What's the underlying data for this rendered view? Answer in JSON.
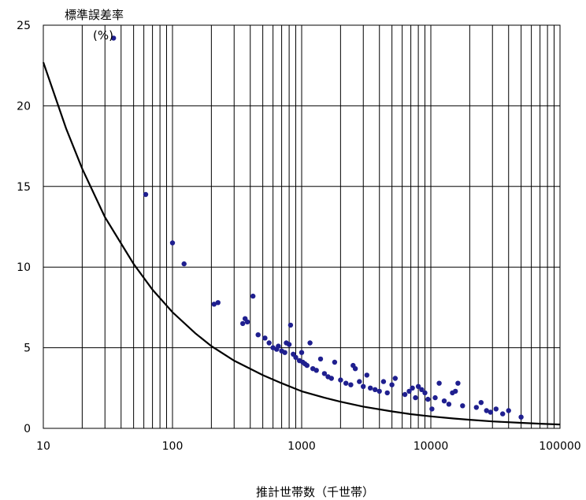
{
  "chart_data": {
    "type": "scatter",
    "title": "",
    "ylabel": "標準誤差率",
    "yunit": "(%)",
    "xlabel": "推計世帯数（千世帯）",
    "x_scale": "log",
    "xlim": [
      10,
      100000
    ],
    "ylim": [
      0,
      25
    ],
    "x_ticks": [
      "10",
      "100",
      "1000",
      "10000",
      "100000"
    ],
    "y_ticks": [
      "0",
      "5",
      "10",
      "15",
      "20",
      "25"
    ],
    "grid": true,
    "marker_color": "#1f1f8f",
    "curve_color": "#000000",
    "curve": {
      "x": [
        10,
        15,
        20,
        30,
        50,
        70,
        100,
        150,
        200,
        300,
        500,
        700,
        1000,
        1500,
        2000,
        3000,
        5000,
        7000,
        10000,
        15000,
        20000,
        30000,
        50000,
        70000,
        100000
      ],
      "y": [
        22.7,
        18.6,
        16.1,
        13.1,
        10.2,
        8.6,
        7.2,
        5.9,
        5.1,
        4.2,
        3.3,
        2.8,
        2.3,
        1.9,
        1.65,
        1.35,
        1.05,
        0.88,
        0.74,
        0.61,
        0.53,
        0.43,
        0.34,
        0.29,
        0.24
      ]
    },
    "points": {
      "x": [
        35,
        62,
        100,
        123,
        210,
        225,
        350,
        365,
        380,
        420,
        460,
        520,
        560,
        600,
        640,
        660,
        700,
        740,
        760,
        800,
        820,
        860,
        900,
        960,
        1000,
        1020,
        1060,
        1100,
        1160,
        1220,
        1300,
        1400,
        1500,
        1600,
        1700,
        1800,
        2000,
        2200,
        2400,
        2500,
        2600,
        2800,
        3000,
        3200,
        3400,
        3700,
        4000,
        4300,
        4600,
        5000,
        5300,
        6300,
        6800,
        7200,
        7600,
        8000,
        8500,
        9000,
        9500,
        10200,
        10800,
        11600,
        12700,
        13800,
        14700,
        15500,
        16200,
        17600,
        22500,
        24500,
        27000,
        29000,
        32000,
        36000,
        40000,
        50000
      ],
      "y": [
        24.2,
        14.5,
        11.5,
        10.2,
        7.7,
        7.8,
        6.5,
        6.8,
        6.6,
        8.2,
        5.8,
        5.6,
        5.3,
        5.0,
        4.9,
        5.1,
        4.8,
        4.7,
        5.3,
        5.2,
        6.4,
        4.6,
        4.4,
        4.2,
        4.7,
        4.1,
        4.0,
        3.9,
        5.3,
        3.7,
        3.6,
        4.3,
        3.4,
        3.2,
        3.1,
        4.1,
        3.0,
        2.8,
        2.7,
        3.9,
        3.7,
        2.9,
        2.6,
        3.3,
        2.5,
        2.4,
        2.3,
        2.9,
        2.2,
        2.7,
        3.1,
        2.1,
        2.3,
        2.5,
        1.9,
        2.6,
        2.4,
        2.2,
        1.8,
        1.2,
        1.9,
        2.8,
        1.7,
        1.5,
        2.2,
        2.3,
        2.8,
        1.4,
        1.3,
        1.6,
        1.1,
        1.0,
        1.2,
        0.9,
        1.1,
        0.7
      ]
    }
  }
}
